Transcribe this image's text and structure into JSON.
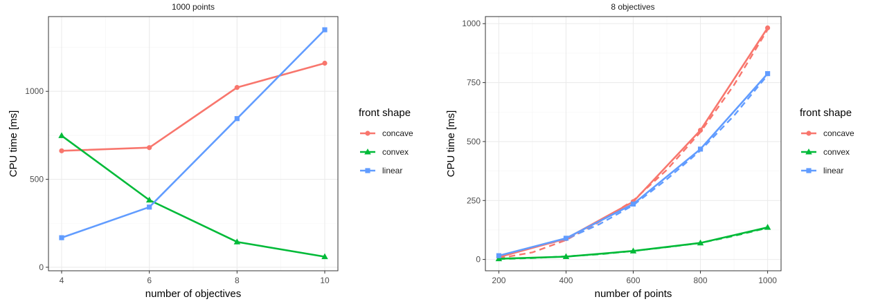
{
  "chart_data": [
    {
      "type": "line",
      "title": "1000 points",
      "xlabel": "number of objectives",
      "ylabel": "CPU time [ms]",
      "x": [
        4,
        6,
        8,
        10
      ],
      "xlim": [
        3.7,
        10.3
      ],
      "ylim": [
        -20,
        1425
      ],
      "xticks": [
        4,
        6,
        8,
        10
      ],
      "yticks": [
        0,
        500,
        1000
      ],
      "grid": true,
      "legend_title": "front shape",
      "legend_position": "right",
      "series": [
        {
          "name": "concave",
          "color": "#F8766D",
          "marker": "circle",
          "values": [
            662,
            680,
            1022,
            1160
          ]
        },
        {
          "name": "convex",
          "color": "#00BA38",
          "marker": "triangle",
          "values": [
            748,
            382,
            144,
            60
          ]
        },
        {
          "name": "linear",
          "color": "#619CFF",
          "marker": "square",
          "values": [
            168,
            342,
            845,
            1350
          ]
        }
      ],
      "dashed_series": []
    },
    {
      "type": "line",
      "title": "8 objectives",
      "xlabel": "number of points",
      "ylabel": "CPU time [ms]",
      "x": [
        200,
        400,
        600,
        800,
        1000
      ],
      "xlim": [
        160,
        1040
      ],
      "ylim": [
        -48,
        1030
      ],
      "xticks": [
        200,
        400,
        600,
        800,
        1000
      ],
      "yticks": [
        0,
        250,
        500,
        750,
        1000
      ],
      "grid": true,
      "legend_title": "front shape",
      "legend_position": "right",
      "series": [
        {
          "name": "concave",
          "color": "#F8766D",
          "marker": "circle",
          "values": [
            10,
            88,
            245,
            548,
            982
          ]
        },
        {
          "name": "convex",
          "color": "#00BA38",
          "marker": "triangle",
          "values": [
            3,
            12,
            36,
            70,
            136
          ]
        },
        {
          "name": "linear",
          "color": "#619CFF",
          "marker": "square",
          "values": [
            16,
            90,
            235,
            468,
            788
          ]
        }
      ],
      "dashed_series": [
        {
          "color": "#F8766D",
          "x": [
            200,
            300,
            400,
            500,
            600,
            700,
            800,
            900,
            1000
          ],
          "values": [
            5,
            30,
            82,
            160,
            250,
            380,
            540,
            740,
            975
          ]
        },
        {
          "color": "#00BA38",
          "x": [
            200,
            300,
            400,
            500,
            600,
            700,
            800,
            900,
            1000
          ],
          "values": [
            2,
            6,
            13,
            22,
            36,
            52,
            70,
            100,
            134
          ]
        },
        {
          "color": "#619CFF",
          "x": [
            200,
            300,
            400,
            500,
            600,
            700,
            800,
            900,
            1000
          ],
          "values": [
            14,
            50,
            86,
            150,
            230,
            340,
            462,
            610,
            782
          ]
        }
      ]
    }
  ]
}
